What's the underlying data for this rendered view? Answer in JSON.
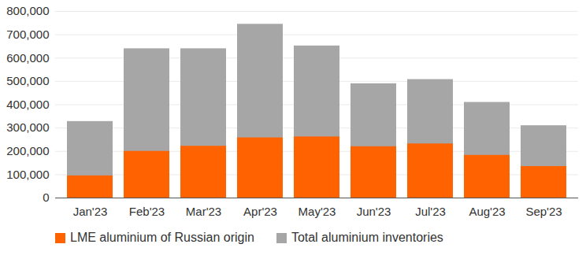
{
  "chart_data": {
    "type": "bar",
    "categories": [
      "Jan'23",
      "Feb'23",
      "Mar'23",
      "Apr'23",
      "May'23",
      "Jun'23",
      "Jul'23",
      "Aug'23",
      "Sep'23"
    ],
    "series": [
      {
        "name": "LME aluminium of Russian origin",
        "color": "#ff6200",
        "values": [
          95000,
          200000,
          222000,
          258000,
          262000,
          220000,
          232000,
          183000,
          135000
        ]
      },
      {
        "name": "Total aluminium inventories",
        "color": "#a6a6a6",
        "values": [
          328000,
          640000,
          640000,
          745000,
          652000,
          490000,
          508000,
          410000,
          310000
        ]
      }
    ],
    "stacked": false,
    "ylim": [
      0,
      800000
    ],
    "yticks": [
      0,
      {
        "value": 100000,
        "label": "100,000"
      },
      {
        "value": 200000,
        "label": "200,000"
      },
      {
        "value": 300000,
        "label": "300,000"
      },
      {
        "value": 400000,
        "label": "400,000"
      },
      {
        "value": 500000,
        "label": "500,000"
      },
      {
        "value": 600000,
        "label": "600,000"
      },
      {
        "value": 700000,
        "label": "700,000"
      },
      {
        "value": 800000,
        "label": "800,000"
      }
    ],
    "grid": true,
    "legend": "bottom"
  }
}
